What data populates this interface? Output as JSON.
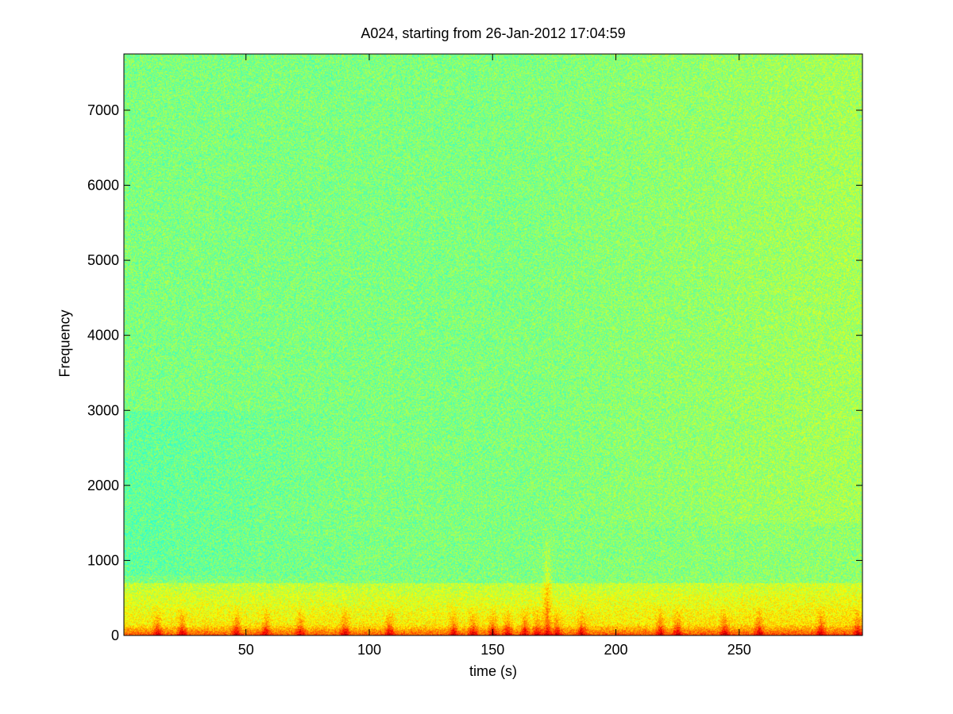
{
  "chart_data": {
    "type": "heatmap",
    "title": "A024, starting from 26-Jan-2012 17:04:59",
    "xlabel": "time (s)",
    "ylabel": "Frequency",
    "xlim": [
      0.5,
      300
    ],
    "ylim": [
      0,
      7750
    ],
    "xticks": [
      50,
      100,
      150,
      200,
      250
    ],
    "yticks": [
      0,
      1000,
      2000,
      3000,
      4000,
      5000,
      6000,
      7000
    ],
    "colormap": [
      "#00007f",
      "#0000ff",
      "#00ffff",
      "#7fff7f",
      "#ffff00",
      "#ff0000",
      "#7f0000"
    ],
    "description_levels": {
      "background": 0.52,
      "low_band_max_freq": 700,
      "transients_s": [
        14,
        24,
        46,
        58,
        72,
        90,
        108,
        134,
        142,
        150,
        156,
        163,
        168,
        172,
        176,
        186,
        218,
        225,
        244,
        258,
        283,
        298
      ]
    }
  }
}
